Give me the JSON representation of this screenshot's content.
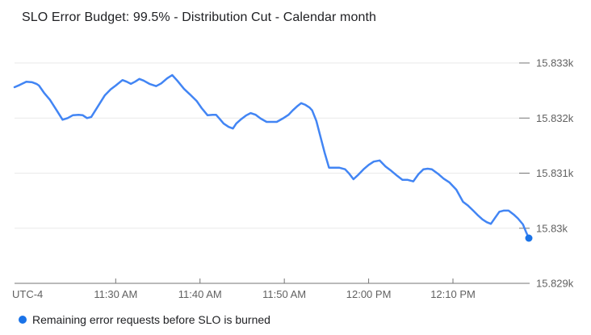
{
  "title": "SLO Error Budget: 99.5% - Distribution Cut - Calendar month",
  "legend": {
    "marker": "circle",
    "marker_color": "#1a73e8",
    "label": "Remaining error requests before SLO is burned"
  },
  "colors": {
    "line": "#4285f4",
    "marker": "#1a73e8",
    "grid": "#e9e9e9",
    "axis": "#757575",
    "tick_text": "#616161",
    "title_text": "#202124",
    "background": "#ffffff"
  },
  "chart_data": {
    "type": "line",
    "title": "SLO Error Budget: 99.5% - Distribution Cut - Calendar month",
    "grid": true,
    "legend_position": "bottom",
    "x_axis": {
      "type": "time",
      "unit": "minutes_since_midnight",
      "timezone_label": "UTC-4",
      "range": [
        678,
        739
      ],
      "ticks": [
        {
          "t": 690,
          "label": "11:30 AM"
        },
        {
          "t": 700,
          "label": "11:40 AM"
        },
        {
          "t": 710,
          "label": "11:50 AM"
        },
        {
          "t": 720,
          "label": "12:00 PM"
        },
        {
          "t": 730,
          "label": "12:10 PM"
        }
      ]
    },
    "y_axis": {
      "side": "right",
      "range": [
        15829,
        15833
      ],
      "ticks": [
        {
          "v": 15833,
          "label": "15.833k"
        },
        {
          "v": 15832,
          "label": "15.832k"
        },
        {
          "v": 15831,
          "label": "15.831k"
        },
        {
          "v": 15830,
          "label": "15.83k"
        },
        {
          "v": 15829,
          "label": "15.829k"
        }
      ]
    },
    "series": [
      {
        "name": "Remaining error requests before SLO is burned",
        "color": "#4285f4",
        "end_marker_color": "#1a73e8",
        "points": [
          [
            678.0,
            15832.56
          ],
          [
            678.6,
            15832.6
          ],
          [
            679.4,
            15832.66
          ],
          [
            680.1,
            15832.65
          ],
          [
            680.6,
            15832.62
          ],
          [
            680.9,
            15832.59
          ],
          [
            681.5,
            15832.46
          ],
          [
            682.2,
            15832.33
          ],
          [
            683.0,
            15832.14
          ],
          [
            683.7,
            15831.97
          ],
          [
            684.3,
            15832.0
          ],
          [
            684.9,
            15832.05
          ],
          [
            685.6,
            15832.06
          ],
          [
            686.1,
            15832.05
          ],
          [
            686.6,
            15832.0
          ],
          [
            687.1,
            15832.02
          ],
          [
            687.8,
            15832.19
          ],
          [
            688.7,
            15832.41
          ],
          [
            689.4,
            15832.52
          ],
          [
            690.0,
            15832.59
          ],
          [
            690.8,
            15832.69
          ],
          [
            691.3,
            15832.66
          ],
          [
            691.8,
            15832.62
          ],
          [
            692.3,
            15832.66
          ],
          [
            692.8,
            15832.71
          ],
          [
            693.3,
            15832.68
          ],
          [
            694.0,
            15832.62
          ],
          [
            694.8,
            15832.58
          ],
          [
            695.4,
            15832.63
          ],
          [
            696.1,
            15832.72
          ],
          [
            696.7,
            15832.78
          ],
          [
            697.3,
            15832.68
          ],
          [
            698.1,
            15832.53
          ],
          [
            698.8,
            15832.43
          ],
          [
            699.6,
            15832.31
          ],
          [
            700.2,
            15832.18
          ],
          [
            700.9,
            15832.05
          ],
          [
            701.5,
            15832.06
          ],
          [
            701.9,
            15832.06
          ],
          [
            702.3,
            15831.99
          ],
          [
            702.8,
            15831.9
          ],
          [
            703.4,
            15831.84
          ],
          [
            703.9,
            15831.81
          ],
          [
            704.3,
            15831.9
          ],
          [
            704.8,
            15831.97
          ],
          [
            705.5,
            15832.05
          ],
          [
            706.0,
            15832.09
          ],
          [
            706.6,
            15832.06
          ],
          [
            707.2,
            15831.99
          ],
          [
            707.9,
            15831.93
          ],
          [
            708.6,
            15831.93
          ],
          [
            709.1,
            15831.93
          ],
          [
            709.8,
            15831.99
          ],
          [
            710.5,
            15832.06
          ],
          [
            711.0,
            15832.14
          ],
          [
            711.5,
            15832.21
          ],
          [
            712.0,
            15832.27
          ],
          [
            712.5,
            15832.24
          ],
          [
            713.0,
            15832.19
          ],
          [
            713.3,
            15832.14
          ],
          [
            713.8,
            15831.95
          ],
          [
            714.3,
            15831.65
          ],
          [
            714.8,
            15831.36
          ],
          [
            715.3,
            15831.1
          ],
          [
            715.8,
            15831.1
          ],
          [
            716.5,
            15831.1
          ],
          [
            717.2,
            15831.07
          ],
          [
            717.7,
            15830.99
          ],
          [
            718.2,
            15830.89
          ],
          [
            718.7,
            15830.96
          ],
          [
            719.4,
            15831.07
          ],
          [
            720.0,
            15831.15
          ],
          [
            720.6,
            15831.21
          ],
          [
            721.3,
            15831.23
          ],
          [
            722.0,
            15831.12
          ],
          [
            722.7,
            15831.04
          ],
          [
            723.4,
            15830.95
          ],
          [
            724.0,
            15830.88
          ],
          [
            724.6,
            15830.88
          ],
          [
            725.3,
            15830.85
          ],
          [
            725.9,
            15830.98
          ],
          [
            726.5,
            15831.07
          ],
          [
            727.0,
            15831.08
          ],
          [
            727.5,
            15831.07
          ],
          [
            728.3,
            15830.98
          ],
          [
            728.9,
            15830.9
          ],
          [
            729.6,
            15830.83
          ],
          [
            730.4,
            15830.7
          ],
          [
            731.2,
            15830.48
          ],
          [
            731.8,
            15830.41
          ],
          [
            732.4,
            15830.32
          ],
          [
            733.0,
            15830.23
          ],
          [
            733.5,
            15830.16
          ],
          [
            734.0,
            15830.11
          ],
          [
            734.5,
            15830.08
          ],
          [
            735.0,
            15830.19
          ],
          [
            735.5,
            15830.3
          ],
          [
            736.0,
            15830.32
          ],
          [
            736.6,
            15830.32
          ],
          [
            737.2,
            15830.25
          ],
          [
            737.7,
            15830.18
          ],
          [
            738.3,
            15830.07
          ],
          [
            738.7,
            15829.92
          ],
          [
            739.0,
            15829.82
          ]
        ]
      }
    ]
  }
}
